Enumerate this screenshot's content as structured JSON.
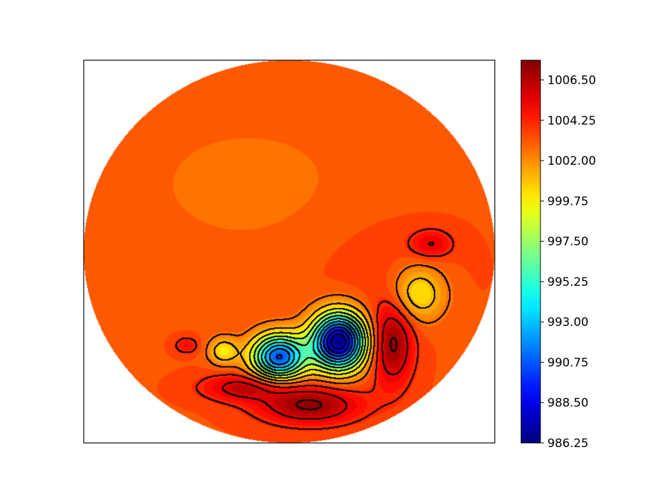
{
  "chart_data": {
    "type": "heatmap",
    "subtype": "filled-contour map on a circular (polar) domain with black contour lines",
    "title": "",
    "xlabel": "",
    "ylabel": "",
    "colormap": "jet",
    "colorbar": {
      "orientation": "vertical",
      "placement": "right",
      "range": [
        986.25,
        1007.6
      ],
      "ticks": [
        986.25,
        988.5,
        990.75,
        993.0,
        995.25,
        997.5,
        999.75,
        1002.0,
        1004.25,
        1006.5
      ],
      "tick_labels": [
        "986.25",
        "988.50",
        "990.75",
        "993.00",
        "995.25",
        "997.50",
        "999.75",
        "1002.00",
        "1004.25",
        "1006.50"
      ]
    },
    "background_value": 1003.3,
    "contour_line_color": "#000000",
    "features": [
      {
        "name": "deep low (center of bottom-middle vortex)",
        "kind": "low",
        "center": [
          0.24,
          -0.47
        ],
        "value": 986.3
      },
      {
        "name": "low (left-middle vortex)",
        "kind": "low",
        "center": [
          -0.05,
          -0.55
        ],
        "value": 990.5
      },
      {
        "name": "weak low (left)",
        "kind": "low",
        "center": [
          -0.32,
          -0.52
        ],
        "value": 1000.0
      },
      {
        "name": "weak low (right)",
        "kind": "low",
        "center": [
          0.63,
          -0.22
        ],
        "value": 999.8
      },
      {
        "name": "strong high (right)",
        "kind": "high",
        "center": [
          0.5,
          -0.48
        ],
        "value": 1007.4
      },
      {
        "name": "strong high (bottom)",
        "kind": "high",
        "center": [
          0.1,
          -0.8
        ],
        "value": 1007.3
      },
      {
        "name": "high (bottom-left)",
        "kind": "high",
        "center": [
          -0.22,
          -0.71
        ],
        "value": 1006.2
      },
      {
        "name": "high (upper right)",
        "kind": "high",
        "center": [
          0.69,
          0.04
        ],
        "value": 1005.5
      },
      {
        "name": "small high (far left)",
        "kind": "high",
        "center": [
          -0.5,
          -0.49
        ],
        "value": 1005.0
      }
    ],
    "domain": "unit disk",
    "grid": false,
    "legend": "none"
  }
}
